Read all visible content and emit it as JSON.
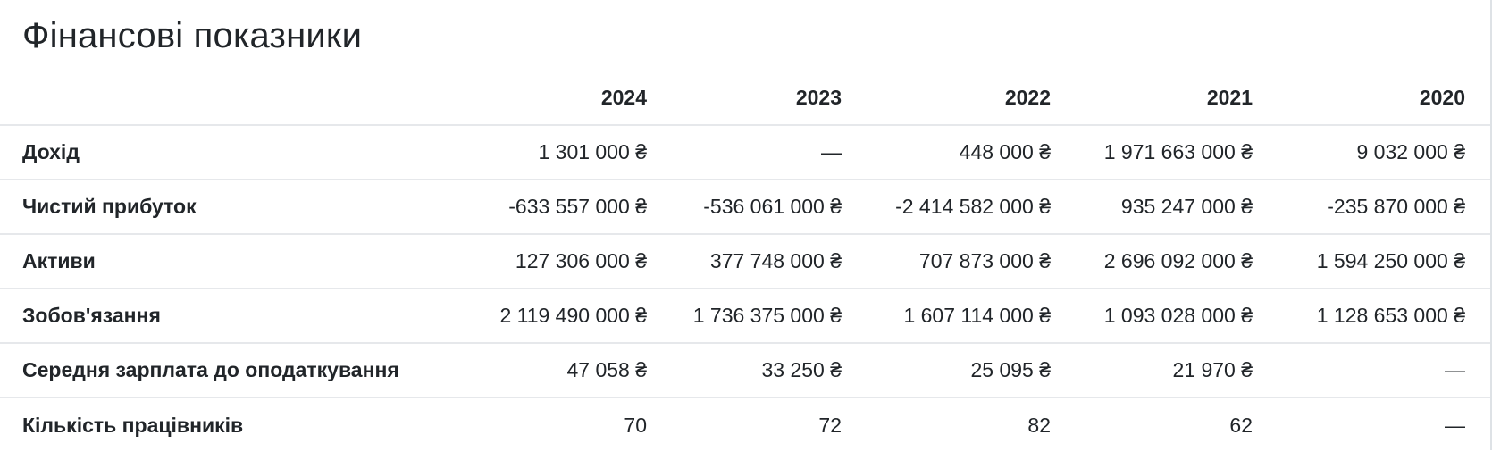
{
  "section": {
    "title": "Фінансові показники"
  },
  "table": {
    "columns": [
      "",
      "2024",
      "2023",
      "2022",
      "2021",
      "2020"
    ],
    "rows": [
      {
        "label": "Дохід",
        "values": [
          "1 301 000 ₴",
          "—",
          "448 000 ₴",
          "1 971 663 000 ₴",
          "9 032 000 ₴"
        ]
      },
      {
        "label": "Чистий прибуток",
        "values": [
          "-633 557 000 ₴",
          "-536 061 000 ₴",
          "-2 414 582 000 ₴",
          "935 247 000 ₴",
          "-235 870 000 ₴"
        ]
      },
      {
        "label": "Активи",
        "values": [
          "127 306 000 ₴",
          "377 748 000 ₴",
          "707 873 000 ₴",
          "2 696 092 000 ₴",
          "1 594 250 000 ₴"
        ]
      },
      {
        "label": "Зобов'язання",
        "values": [
          "2 119 490 000 ₴",
          "1 736 375 000 ₴",
          "1 607 114 000 ₴",
          "1 093 028 000 ₴",
          "1 128 653 000 ₴"
        ]
      },
      {
        "label": "Середня зарплата до оподаткування",
        "values": [
          "47 058 ₴",
          "33 250 ₴",
          "25 095 ₴",
          "21 970 ₴",
          "—"
        ]
      },
      {
        "label": "Кількість працівників",
        "values": [
          "70",
          "72",
          "82",
          "62",
          "—"
        ]
      }
    ]
  }
}
